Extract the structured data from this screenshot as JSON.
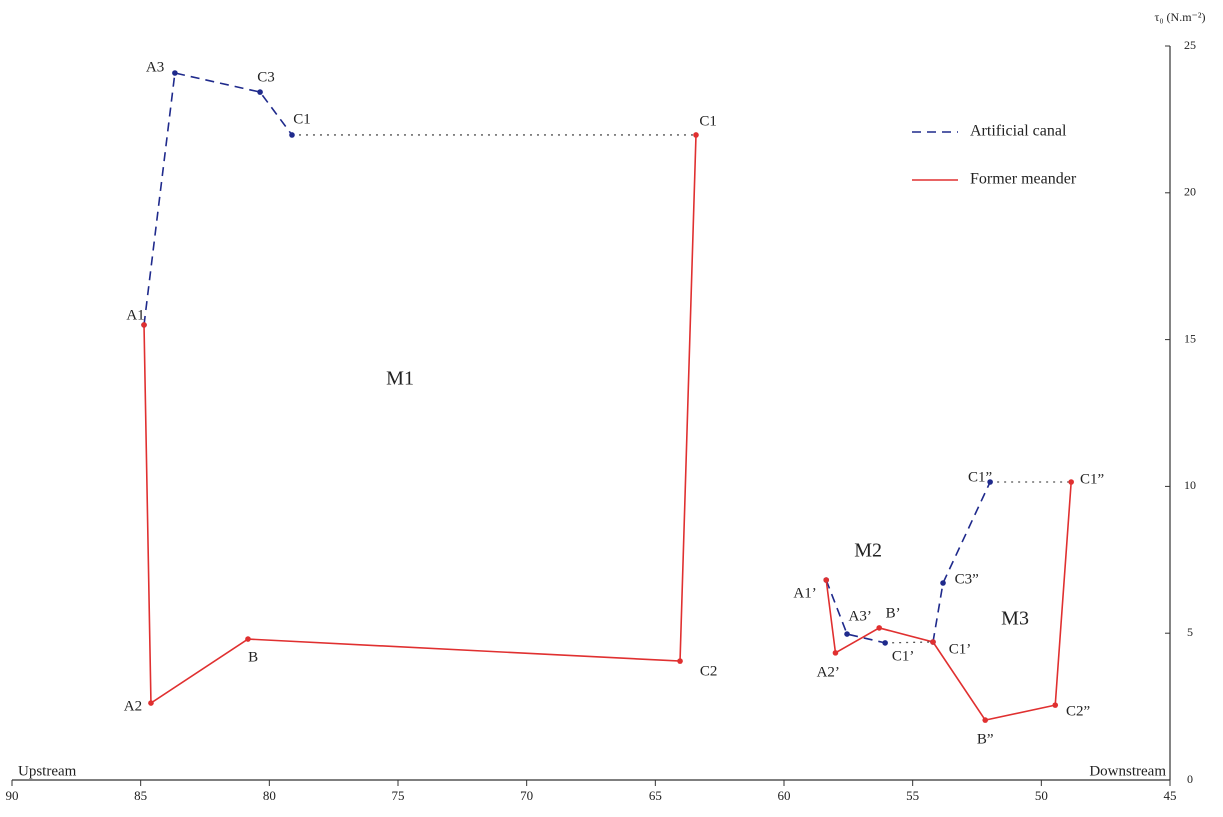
{
  "chart_data": {
    "type": "line",
    "ylabel": "τ₀ (N.m⁻²)",
    "left_label": "Upstream",
    "right_label": "Downstream",
    "xlim": [
      90,
      45
    ],
    "xticks": [
      90,
      85,
      80,
      75,
      70,
      65,
      60,
      55,
      50,
      45
    ],
    "ylim": [
      0,
      25
    ],
    "yticks": [
      0,
      5,
      10,
      15,
      20,
      25
    ],
    "legend": "upper right",
    "series": [
      {
        "name": "Artificial canal",
        "color": "#1f2a8c",
        "style": "dashed",
        "markers": true,
        "x": [
          84.87,
          83.67,
          80.36,
          79.12,
          null,
          58.36,
          57.55,
          56.07,
          null,
          54.21,
          53.82,
          51.99
        ],
        "y": [
          15.5,
          24.08,
          23.43,
          21.97,
          null,
          6.81,
          4.97,
          4.67,
          null,
          4.7,
          6.71,
          10.15
        ]
      },
      {
        "name": "Former meander",
        "color": "#e03030",
        "style": "solid",
        "markers": true,
        "x": [
          84.87,
          84.6,
          80.83,
          64.04,
          63.42,
          null,
          58.36,
          58.0,
          56.3,
          54.21,
          52.18,
          49.46,
          48.84
        ],
        "y": [
          15.5,
          2.62,
          4.8,
          4.05,
          21.97,
          null,
          6.81,
          4.33,
          5.18,
          4.7,
          2.04,
          2.55,
          10.15
        ]
      },
      {
        "color": "#555555",
        "style": "dotted",
        "markers": false,
        "x": [
          79.12,
          63.42,
          null,
          56.07,
          54.21,
          null,
          51.99,
          48.84
        ],
        "y": [
          21.97,
          21.97,
          null,
          4.67,
          4.7,
          null,
          10.15,
          10.15
        ]
      }
    ],
    "annotations": [
      {
        "text": "A3",
        "x": 84.44,
        "y": 24.25
      },
      {
        "text": "C3",
        "x": 80.13,
        "y": 23.91
      },
      {
        "text": "C1",
        "x": 78.73,
        "y": 22.48
      },
      {
        "text": "C1",
        "x": 62.95,
        "y": 22.41
      },
      {
        "text": "A1",
        "x": 85.2,
        "y": 15.8
      },
      {
        "text": "M1",
        "x": 74.92,
        "y": 13.62
      },
      {
        "text": "B",
        "x": 80.63,
        "y": 4.16
      },
      {
        "text": "A2",
        "x": 85.3,
        "y": 2.49
      },
      {
        "text": "C2",
        "x": 62.93,
        "y": 3.68
      },
      {
        "text": "C1”",
        "x": 52.38,
        "y": 10.29
      },
      {
        "text": "C1”",
        "x": 48.03,
        "y": 10.22
      },
      {
        "text": "M2",
        "x": 56.73,
        "y": 7.77
      },
      {
        "text": "C3”",
        "x": 52.9,
        "y": 6.81
      },
      {
        "text": "M3",
        "x": 51.02,
        "y": 5.45
      },
      {
        "text": "A1’",
        "x": 59.18,
        "y": 6.34
      },
      {
        "text": "A3’",
        "x": 57.04,
        "y": 5.55
      },
      {
        "text": "B’",
        "x": 55.76,
        "y": 5.65
      },
      {
        "text": "C1’",
        "x": 55.37,
        "y": 4.19
      },
      {
        "text": "C1’",
        "x": 53.16,
        "y": 4.43
      },
      {
        "text": "A2’",
        "x": 58.28,
        "y": 3.64
      },
      {
        "text": "B”",
        "x": 52.18,
        "y": 1.36
      },
      {
        "text": "C2”",
        "x": 48.57,
        "y": 2.32
      }
    ]
  }
}
